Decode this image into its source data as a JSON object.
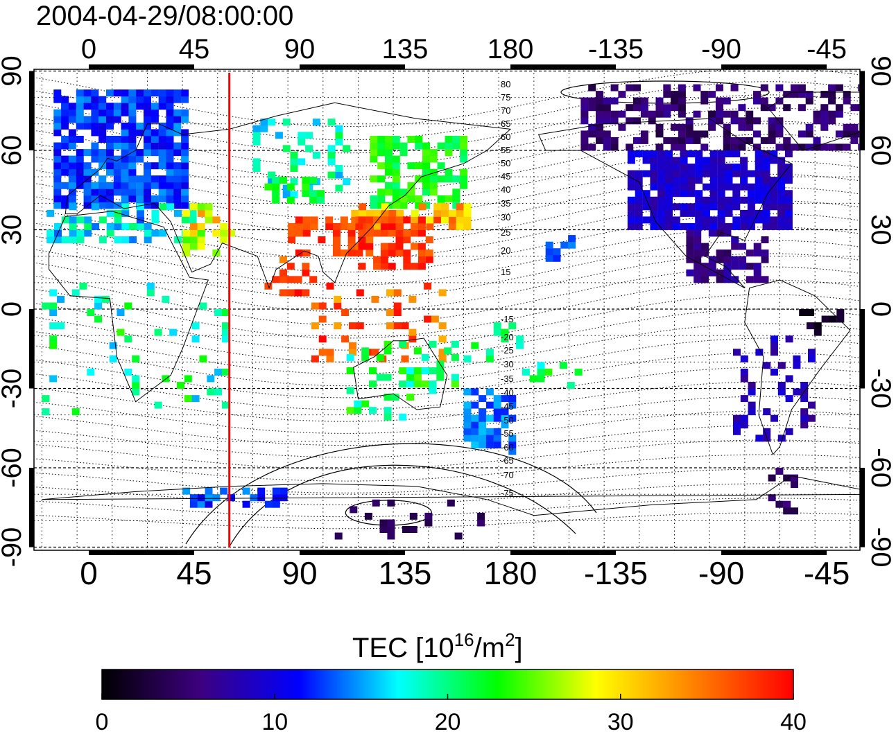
{
  "title": "2004-04-29/08:00:00",
  "map": {
    "lon_ticks": [
      "0",
      "45",
      "90",
      "135",
      "180",
      "-135",
      "-90",
      "-45"
    ],
    "lat_ticks": [
      "90",
      "60",
      "30",
      "0",
      "-30",
      "-60",
      "-90"
    ],
    "lon_values": [
      0,
      45,
      90,
      135,
      180,
      225,
      270,
      315
    ],
    "lat_values": [
      90,
      60,
      30,
      0,
      -30,
      -60,
      -90
    ],
    "meridian_marker_lon": 60,
    "marker_color": "#ff0000",
    "contour_labels_north": [
      "80",
      "75",
      "70",
      "65",
      "60",
      "55",
      "50",
      "45",
      "40",
      "35",
      "30",
      "25",
      "20",
      "15"
    ],
    "contour_labels_south": [
      "-15",
      "-20",
      "-25",
      "-30",
      "-35",
      "-40",
      "-45",
      "-50",
      "-55",
      "-60",
      "-65",
      "-70",
      "-75"
    ]
  },
  "colorbar": {
    "label_main": "TEC  [10",
    "label_sup1": "16",
    "label_mid": "/m",
    "label_sup2": "2",
    "label_end": "]",
    "ticks": [
      "0",
      "10",
      "20",
      "30",
      "40"
    ],
    "min": 0,
    "max": 40,
    "colors": [
      "#000000",
      "#3d0080",
      "#0000ff",
      "#00ffff",
      "#00ff00",
      "#ffff00",
      "#ff8000",
      "#ff0000"
    ]
  }
}
